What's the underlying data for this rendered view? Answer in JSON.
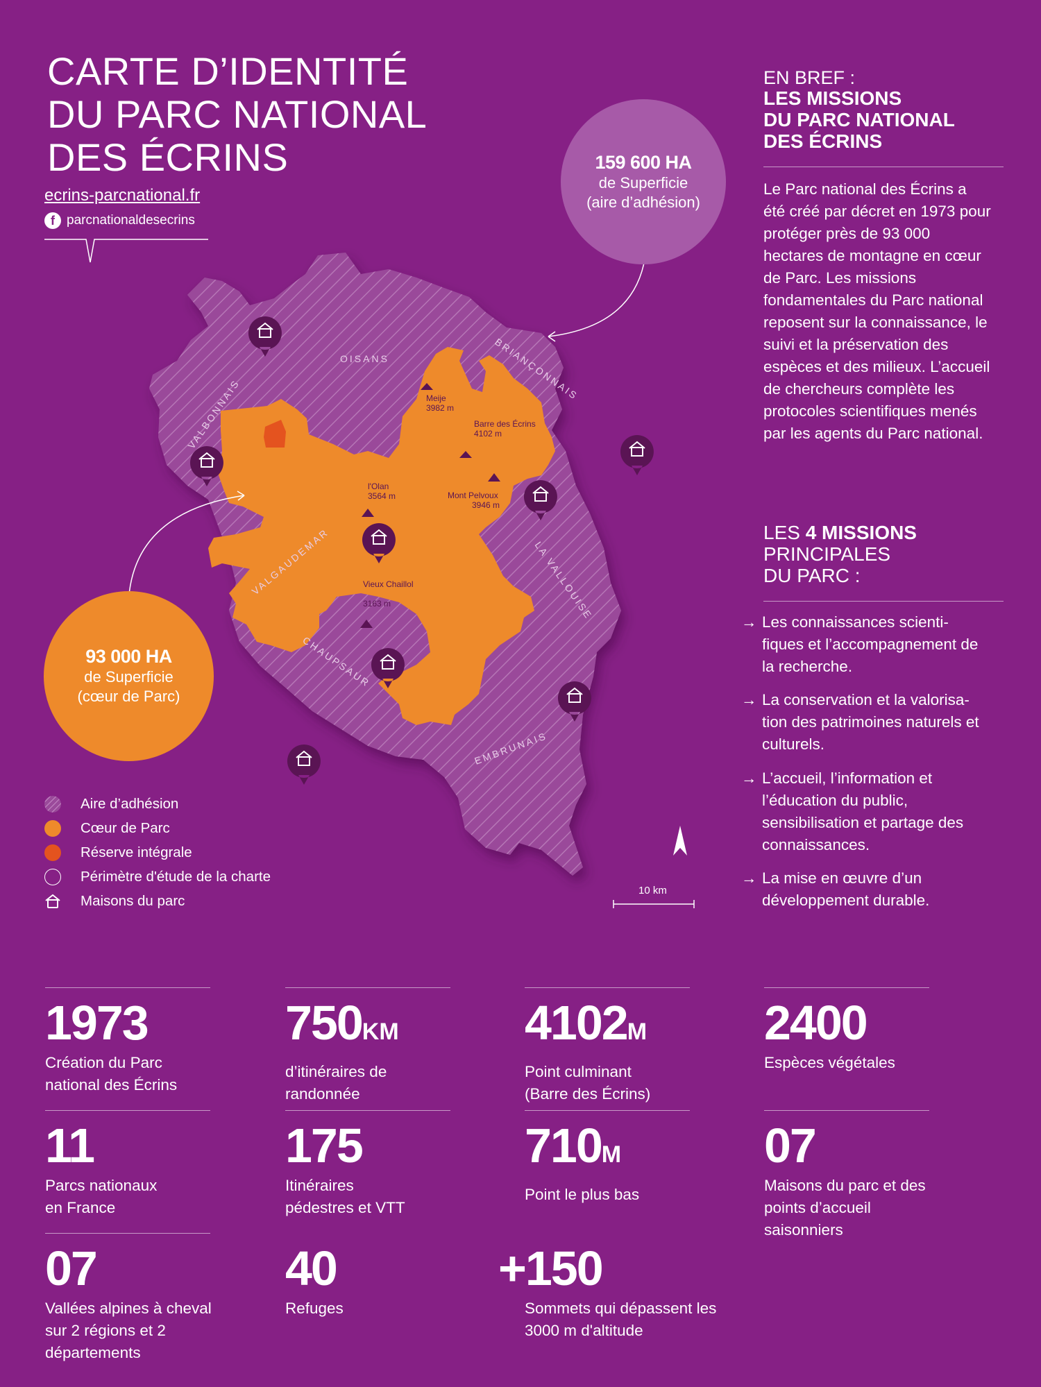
{
  "header": {
    "title_lines": [
      "CARTE D’IDENTITÉ",
      "DU PARC NATIONAL",
      "DES ÉCRINS"
    ],
    "website": "ecrins-parcnational.fr",
    "facebook_icon": "f",
    "facebook": "parcnationaldesecrins"
  },
  "bubbles": {
    "adhesion": {
      "value": "159 600 HA",
      "line1": "de Superficie",
      "line2": "(aire d’adhésion)",
      "color": "#a75aa8"
    },
    "coeur": {
      "value": "93 000 HA",
      "line1": "de Superficie",
      "line2": "(cœur de Parc)",
      "color": "#ee8a2b"
    }
  },
  "map": {
    "regions": [
      "OISANS",
      "BRIANÇONNAIS",
      "VALBONNAIS",
      "VALGAUDEMAR",
      "LA VALLOUISE",
      "CHAUPSAUR",
      "EMBRUNAIS"
    ],
    "peaks": [
      {
        "name": "Meije",
        "alt": "3982 m"
      },
      {
        "name": "Barre des Écrins",
        "alt": "4102 m"
      },
      {
        "name": "l'Olan",
        "alt": "3564 m"
      },
      {
        "name": "Mont Pelvoux",
        "alt": "3946 m"
      },
      {
        "name": "Vieux Chaillol",
        "alt": "3163 m"
      }
    ],
    "scale_label": "10 km",
    "compass": "north-arrow-icon",
    "colors": {
      "adhesion": "#9a4a9a",
      "coeur": "#ee8a2b",
      "reserve": "#e4531f",
      "pin": "#5a1454"
    }
  },
  "legend": [
    {
      "label": "Aire d’adhésion",
      "kind": "hatch"
    },
    {
      "label": "Cœur de Parc",
      "kind": "orange"
    },
    {
      "label": "Réserve intégrale",
      "kind": "red"
    },
    {
      "label": "Périmètre d'étude de la charte",
      "kind": "outline"
    },
    {
      "label": "Maisons du parc",
      "kind": "house"
    }
  ],
  "missions": {
    "brief_label": "EN BREF :",
    "brief_title_lines": [
      "LES MISSIONS",
      "DU PARC NATIONAL",
      "DES ÉCRINS"
    ],
    "intro": "Le Parc national des Écrins a été créé par décret en 1973 pour protéger près de 93 000 hectares de montagne en cœur de Parc. Les missions fondamentales du Parc national reposent sur la connaissance, le suivi et la préservation des espèces et des milieux. L’accueil de chercheurs complète les protocoles scientifiques menés par les agents du Parc national.",
    "heading_pre": "LES ",
    "heading_bold": "4 MISSIONS",
    "heading_l2": "PRINCIPALES",
    "heading_l3": "DU PARC :",
    "arrow": "→",
    "items": [
      "Les connaissances scienti-fiques et l’accompagnement de la recherche.",
      "La conservation et la valorisa-tion des patrimoines naturels et culturels.",
      "L’accueil, l’information et l’éducation du public, sensibilisation et partage des connaissances.",
      "La mise en œuvre d’un développement durable."
    ]
  },
  "stats": [
    {
      "num": "1973",
      "unit": "",
      "label": "Création du Parc national des Écrins"
    },
    {
      "num": "750",
      "unit": "KM",
      "label": "d’itinéraires de randonnée"
    },
    {
      "num": "4102",
      "unit": "M",
      "label": "Point culminant (Barre des Écrins)"
    },
    {
      "num": "2400",
      "unit": "",
      "label": "Espèces végétales"
    },
    {
      "num": "11",
      "unit": "",
      "label": "Parcs nationaux en France"
    },
    {
      "num": "175",
      "unit": "",
      "label": "Itinéraires pédestres et VTT"
    },
    {
      "num": "710",
      "unit": "M",
      "label": "Point le plus bas"
    },
    {
      "num": "07",
      "unit": "",
      "label": "Maisons du parc et des points d’accueil saisonniers"
    },
    {
      "num": "07",
      "unit": "",
      "label": "Vallées alpines à cheval sur 2 régions et 2 départements"
    },
    {
      "num": "40",
      "unit": "",
      "label": "Refuges"
    },
    {
      "num": "+150",
      "unit": "",
      "label": "Sommets qui dépassent les 3000 m d'altitude"
    }
  ]
}
